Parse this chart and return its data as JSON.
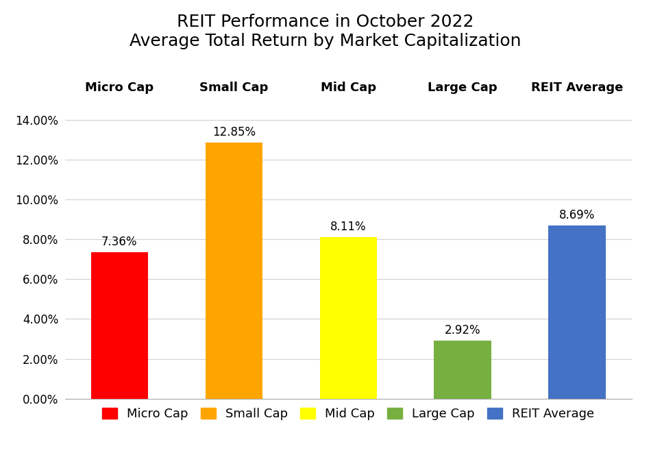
{
  "title_line1": "REIT Performance in October 2022",
  "title_line2": "Average Total Return by Market Capitalization",
  "categories": [
    "Micro Cap",
    "Small Cap",
    "Mid Cap",
    "Large Cap",
    "REIT Average"
  ],
  "values": [
    0.0736,
    0.1285,
    0.0811,
    0.0292,
    0.0869
  ],
  "bar_colors": [
    "#FF0000",
    "#FFA500",
    "#FFFF00",
    "#76B041",
    "#4472C4"
  ],
  "bar_labels": [
    "7.36%",
    "12.85%",
    "8.11%",
    "2.92%",
    "8.69%"
  ],
  "ylim": [
    0,
    0.15
  ],
  "yticks": [
    0.0,
    0.02,
    0.04,
    0.06,
    0.08,
    0.1,
    0.12,
    0.14
  ],
  "ytick_labels": [
    "0.00%",
    "2.00%",
    "4.00%",
    "6.00%",
    "8.00%",
    "10.00%",
    "12.00%",
    "14.00%"
  ],
  "background_color": "#FFFFFF",
  "grid_color": "#D0D0D0",
  "legend_labels": [
    "Micro Cap",
    "Small Cap",
    "Mid Cap",
    "Large Cap",
    "REIT Average"
  ],
  "legend_colors": [
    "#FF0000",
    "#FFA500",
    "#FFFF00",
    "#76B041",
    "#4472C4"
  ],
  "title_fontsize": 18,
  "legend_fontsize": 13,
  "tick_fontsize": 12,
  "bar_label_fontsize": 12,
  "cat_label_fontsize": 13
}
